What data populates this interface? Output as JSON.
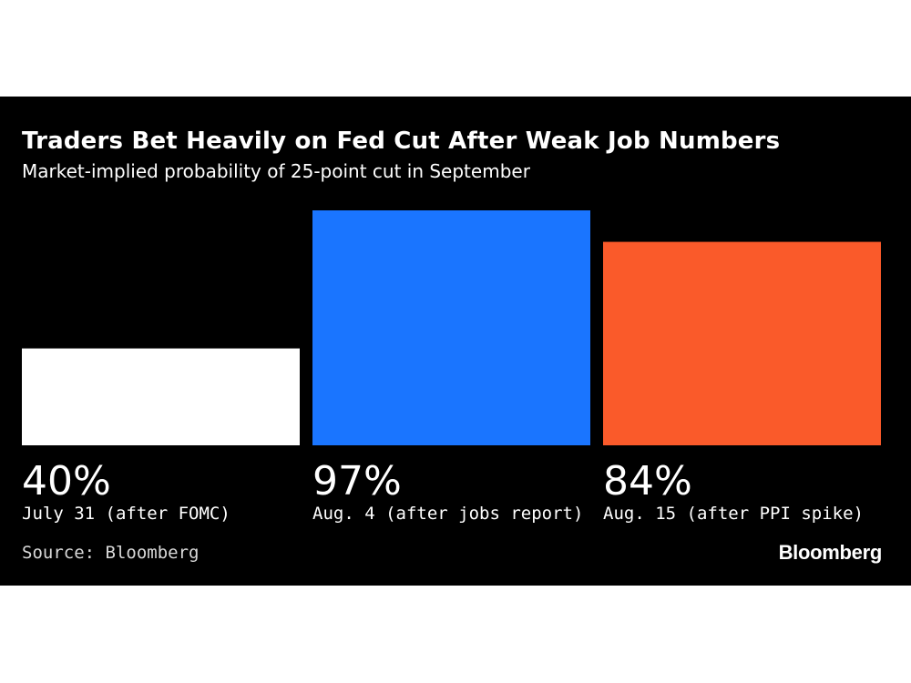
{
  "header": {
    "title": "Traders Bet Heavily on Fed Cut After Weak Job Numbers",
    "subtitle": "Market-implied probability of 25-point cut in September"
  },
  "footer": {
    "source": "Source: Bloomberg",
    "brand": "Bloomberg"
  },
  "chart_data": {
    "type": "bar",
    "title": "Traders Bet Heavily on Fed Cut After Weak Job Numbers",
    "subtitle": "Market-implied probability of 25-point cut in September",
    "categories": [
      "July 31 (after FOMC)",
      "Aug. 4 (after jobs report)",
      "Aug. 15 (after PPI spike)"
    ],
    "values": [
      40,
      97,
      84
    ],
    "value_labels": [
      "40%",
      "97%",
      "84%"
    ],
    "colors": [
      "#ffffff",
      "#1a75ff",
      "#fa5a2a"
    ],
    "ylim": [
      0,
      100
    ],
    "grid": false,
    "legend": "none"
  }
}
